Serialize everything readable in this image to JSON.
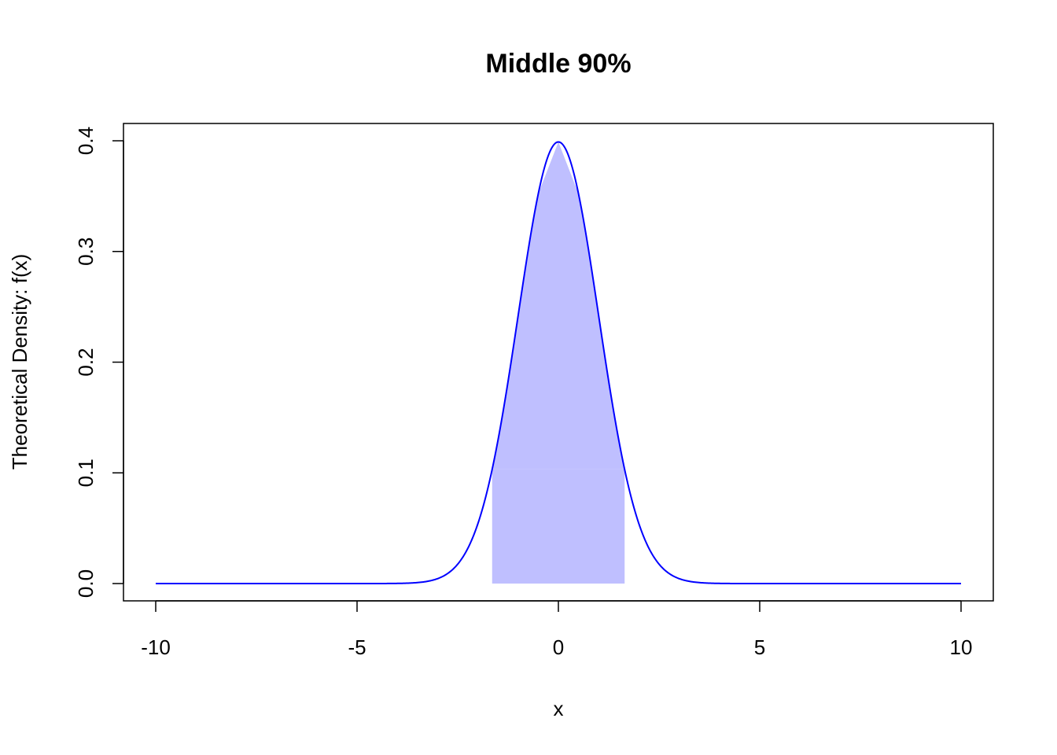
{
  "chart_data": {
    "type": "area",
    "title": "Middle 90%",
    "xlabel": "x",
    "ylabel": "Theoretical Density: f(x)",
    "xlim": [
      -10,
      10
    ],
    "ylim": [
      0,
      0.4
    ],
    "x_ticks": [
      -10,
      -5,
      0,
      5,
      10
    ],
    "x_tick_labels": [
      "-10",
      "-5",
      "0",
      "5",
      "10"
    ],
    "y_ticks": [
      0.0,
      0.1,
      0.2,
      0.3,
      0.4
    ],
    "y_tick_labels": [
      "0.0",
      "0.1",
      "0.2",
      "0.3",
      "0.4"
    ],
    "grid": false,
    "distribution": "standard normal",
    "curve": {
      "x": [
        -10,
        -5,
        -4,
        -3.5,
        -3,
        -2.5,
        -2,
        -1.645,
        -1.5,
        -1,
        -0.5,
        0,
        0.5,
        1,
        1.5,
        1.645,
        2,
        2.5,
        3,
        3.5,
        4,
        5,
        10
      ],
      "y": [
        0.0,
        1.5e-06,
        0.000134,
        0.000873,
        0.00443,
        0.0175,
        0.054,
        0.1031,
        0.1295,
        0.242,
        0.3521,
        0.3989,
        0.3521,
        0.242,
        0.1295,
        0.1031,
        0.054,
        0.0175,
        0.00443,
        0.000873,
        0.000134,
        1.5e-06,
        0.0
      ]
    },
    "shaded_region": {
      "x_from": -1.645,
      "x_to": 1.645,
      "top_edge": "flat"
    },
    "colors": {
      "curve": "#0000FF",
      "shade": "#BFBFFF",
      "axis": "#000000"
    }
  }
}
